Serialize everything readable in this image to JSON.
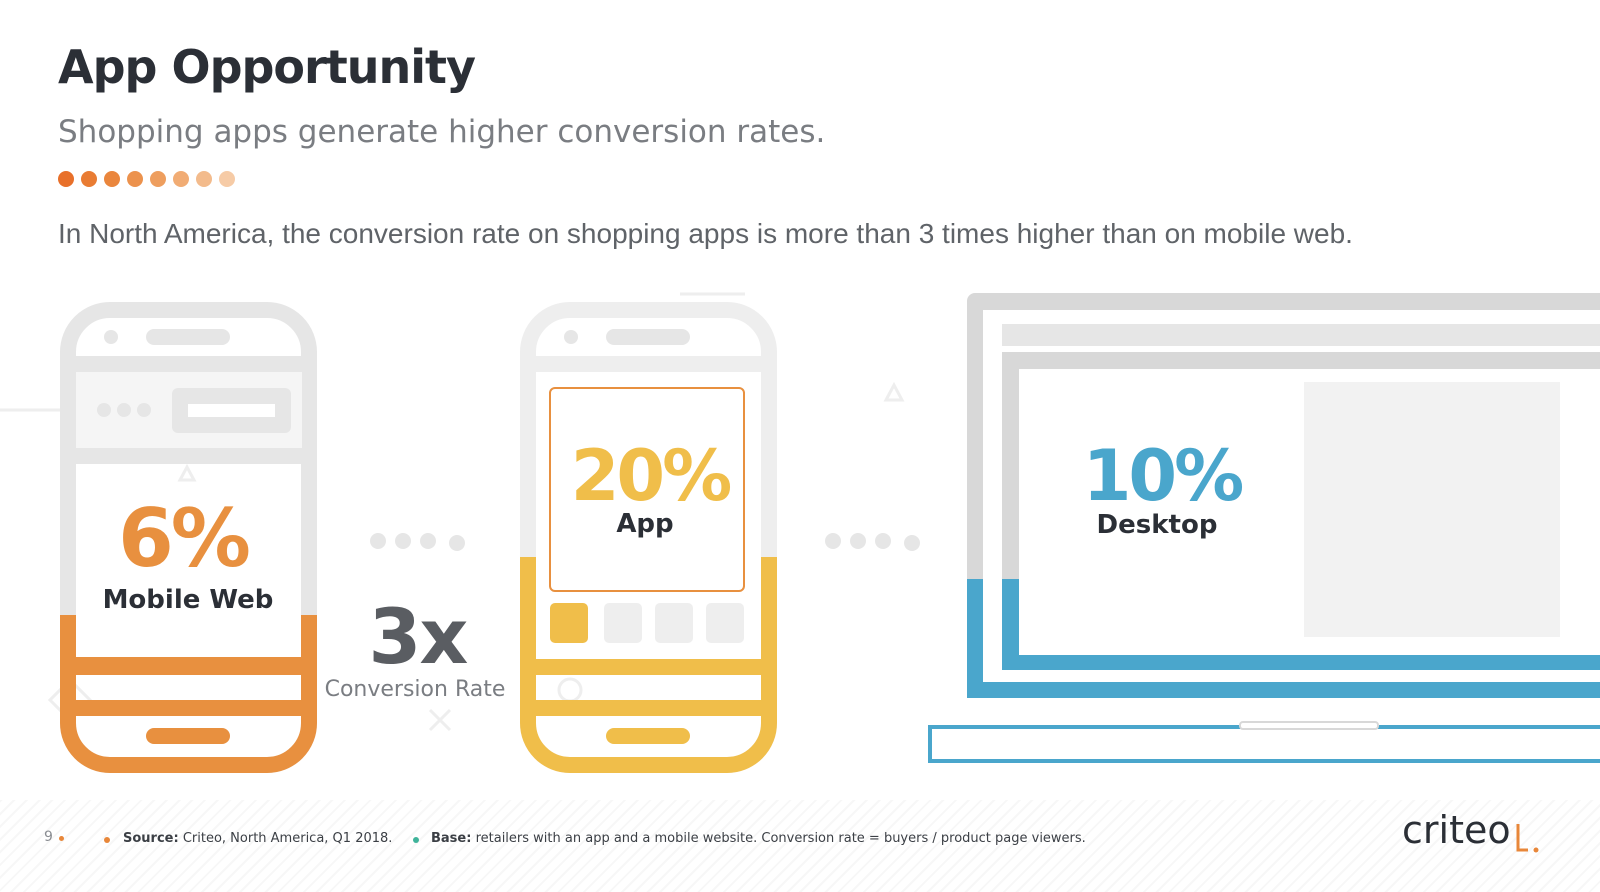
{
  "header": {
    "title": "App Opportunity",
    "subtitle": "Shopping apps generate higher conversion rates.",
    "dot_colors": [
      "#e8702a",
      "#e97c33",
      "#ea863d",
      "#ec924d",
      "#ee9e5e",
      "#f1ac74",
      "#f3bb8c",
      "#f6cba6"
    ]
  },
  "statement": "In North America, the conversion rate on shopping apps is more than 3 times higher than on mobile web.",
  "devices": {
    "mobile_web": {
      "value": "6%",
      "label": "Mobile Web",
      "color": "#e8903f",
      "fill_fraction": 0.32
    },
    "app": {
      "value": "20%",
      "label": "App",
      "color": "#f0be4a",
      "fill_fraction": 0.45
    },
    "desktop": {
      "value": "10%",
      "label": "Desktop",
      "color": "#4aa6cc",
      "fill_fraction": 0.27
    }
  },
  "multiplier": {
    "value": "3x",
    "label": "Conversion Rate"
  },
  "footer": {
    "page_number": "9",
    "source_label": "Source:",
    "source_text": "Criteo, North America, Q1 2018.",
    "base_label": "Base:",
    "base_text": "retailers with an app and a mobile website. Conversion rate = buyers / product page viewers.",
    "source_bullet_color": "#e8873a",
    "base_bullet_color": "#3fb39a"
  },
  "logo": {
    "text": "criteo",
    "accent_color": "#e8873a"
  },
  "colors": {
    "frame_gray": "#e6e6e6",
    "frame_gray_dark": "#d6d6d6"
  }
}
